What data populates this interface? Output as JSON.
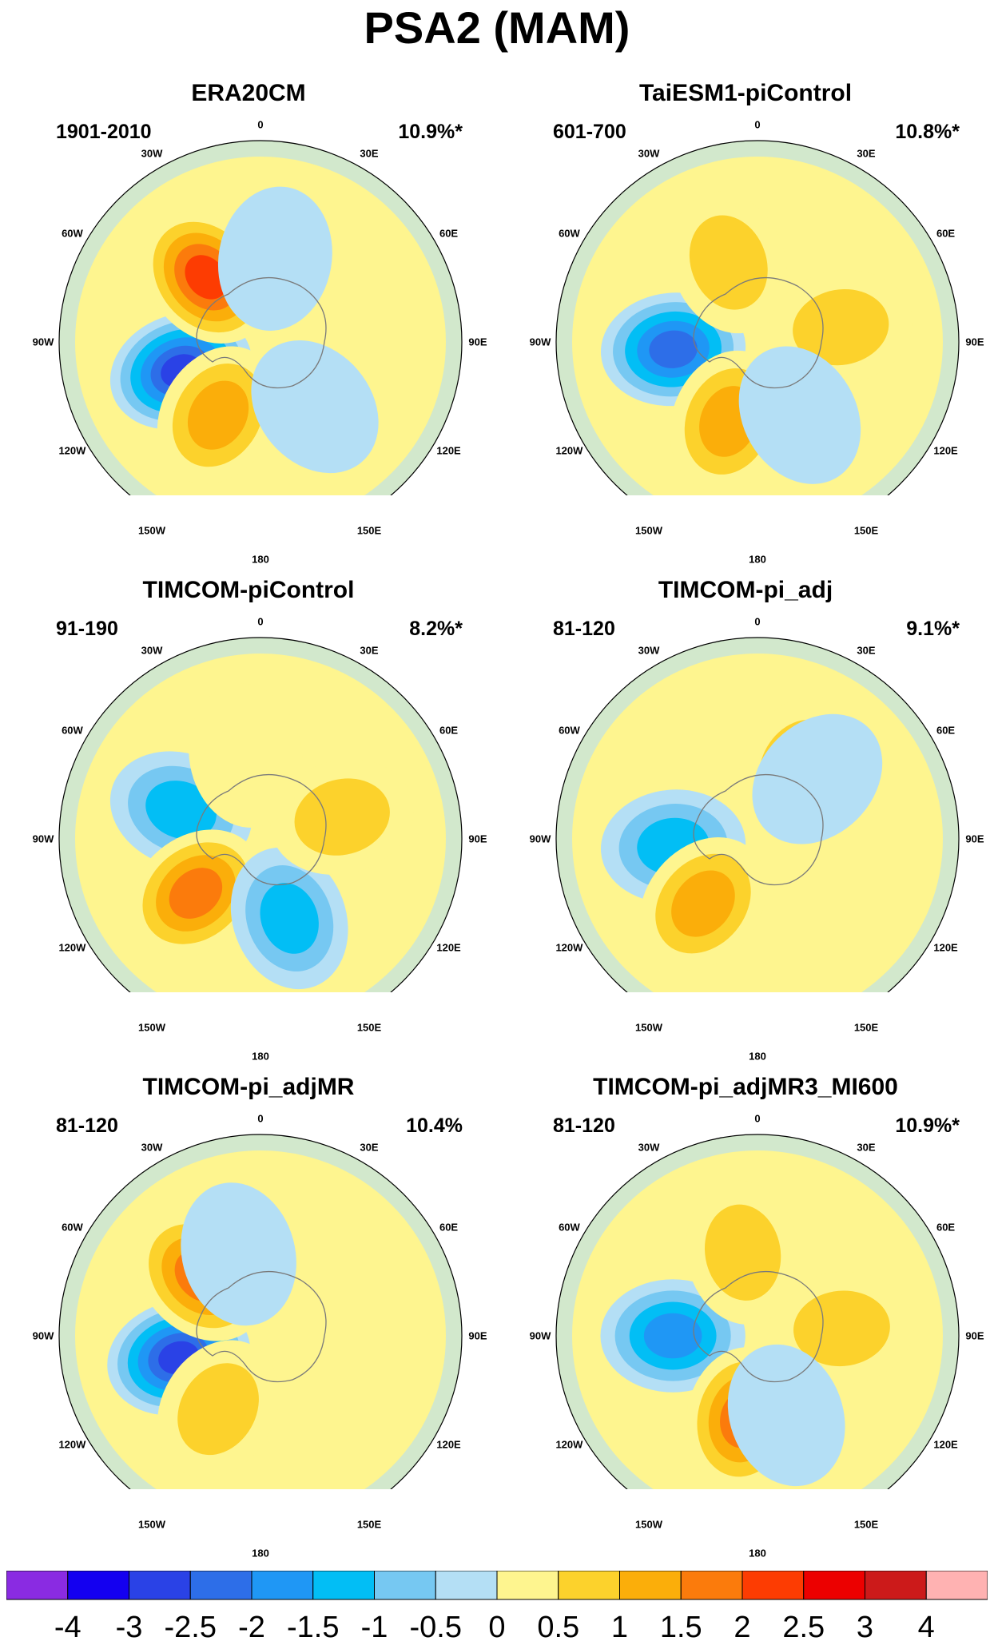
{
  "title": "PSA2 (MAM)",
  "longitude_labels": [
    "0",
    "30E",
    "60E",
    "90E",
    "120E",
    "150E",
    "180",
    "150W",
    "120W",
    "90W",
    "60W",
    "30W"
  ],
  "chart_data": [
    {
      "type": "heatmap",
      "projection": "south-polar-stereographic",
      "variable": "PSA2 pattern",
      "title": "ERA20CM",
      "period": "1901-2010",
      "explained_variance": "10.9%*",
      "significant": true,
      "features": [
        {
          "kind": "negative",
          "level": -3.0,
          "lon": "110W"
        },
        {
          "kind": "positive",
          "level": 2.5,
          "lon": "40W"
        },
        {
          "kind": "positive",
          "level": 1.5,
          "lon": "150W"
        },
        {
          "kind": "negative",
          "level": -0.5,
          "lon": "10E"
        },
        {
          "kind": "negative",
          "level": -0.5,
          "lon": "140E"
        }
      ]
    },
    {
      "type": "heatmap",
      "projection": "south-polar-stereographic",
      "variable": "PSA2 pattern",
      "title": "TaiESM1-piControl",
      "period": "601-700",
      "explained_variance": "10.8%*",
      "significant": true,
      "features": [
        {
          "kind": "negative",
          "level": -2.5,
          "lon": "95W"
        },
        {
          "kind": "positive",
          "level": 1.0,
          "lon": "20W"
        },
        {
          "kind": "positive",
          "level": 1.0,
          "lon": "80E"
        },
        {
          "kind": "positive",
          "level": 1.5,
          "lon": "160W"
        },
        {
          "kind": "negative",
          "level": -0.5,
          "lon": "150E"
        }
      ]
    },
    {
      "type": "heatmap",
      "projection": "south-polar-stereographic",
      "variable": "PSA2 pattern",
      "title": "TIMCOM-piControl",
      "period": "91-190",
      "explained_variance": "8.2%*",
      "significant": true,
      "features": [
        {
          "kind": "negative",
          "level": -1.5,
          "lon": "70W"
        },
        {
          "kind": "positive",
          "level": 2.0,
          "lon": "130W"
        },
        {
          "kind": "negative",
          "level": -1.5,
          "lon": "160E"
        },
        {
          "kind": "positive",
          "level": 1.0,
          "lon": "75E"
        },
        {
          "kind": "positive",
          "level": 0.5,
          "lon": "10W"
        }
      ]
    },
    {
      "type": "heatmap",
      "projection": "south-polar-stereographic",
      "variable": "PSA2 pattern",
      "title": "TIMCOM-pi_adj",
      "period": "81-120",
      "explained_variance": "9.1%*",
      "significant": true,
      "features": [
        {
          "kind": "negative",
          "level": -1.5,
          "lon": "95W"
        },
        {
          "kind": "positive",
          "level": 1.5,
          "lon": "140W"
        },
        {
          "kind": "positive",
          "level": 1.0,
          "lon": "30E"
        },
        {
          "kind": "negative",
          "level": -0.5,
          "lon": "45E"
        }
      ]
    },
    {
      "type": "heatmap",
      "projection": "south-polar-stereographic",
      "variable": "PSA2 pattern",
      "title": "TIMCOM-pi_adjMR",
      "period": "81-120",
      "explained_variance": "10.4%",
      "significant": false,
      "features": [
        {
          "kind": "negative",
          "level": -3.0,
          "lon": "105W"
        },
        {
          "kind": "positive",
          "level": 2.0,
          "lon": "45W"
        },
        {
          "kind": "positive",
          "level": 1.0,
          "lon": "150W"
        },
        {
          "kind": "negative",
          "level": -0.5,
          "lon": "15W"
        }
      ]
    },
    {
      "type": "heatmap",
      "projection": "south-polar-stereographic",
      "variable": "PSA2 pattern",
      "title": "TIMCOM-pi_adjMR3_MI600",
      "period": "81-120",
      "explained_variance": "10.9%*",
      "significant": true,
      "features": [
        {
          "kind": "negative",
          "level": -2.0,
          "lon": "90W"
        },
        {
          "kind": "positive",
          "level": 2.0,
          "lon": "170W"
        },
        {
          "kind": "positive",
          "level": 1.0,
          "lon": "85E"
        },
        {
          "kind": "positive",
          "level": 1.0,
          "lon": "10W"
        },
        {
          "kind": "negative",
          "level": -0.5,
          "lon": "160E"
        }
      ]
    }
  ],
  "colorbar": {
    "labels": [
      "-4",
      "-3",
      "-2.5",
      "-2",
      "-1.5",
      "-1",
      "-0.5",
      "0",
      "0.5",
      "1",
      "1.5",
      "2",
      "2.5",
      "3",
      "4"
    ],
    "colors": [
      "#8a2be2",
      "#1400f0",
      "#2a42e6",
      "#2d6ee8",
      "#1f97f5",
      "#02bef5",
      "#76c8f2",
      "#b4dff5",
      "#fef58f",
      "#fcd22c",
      "#fbae0a",
      "#fb7b0c",
      "#fd3c02",
      "#ec0000",
      "#cc1a1a",
      "#ffb2b2"
    ]
  }
}
